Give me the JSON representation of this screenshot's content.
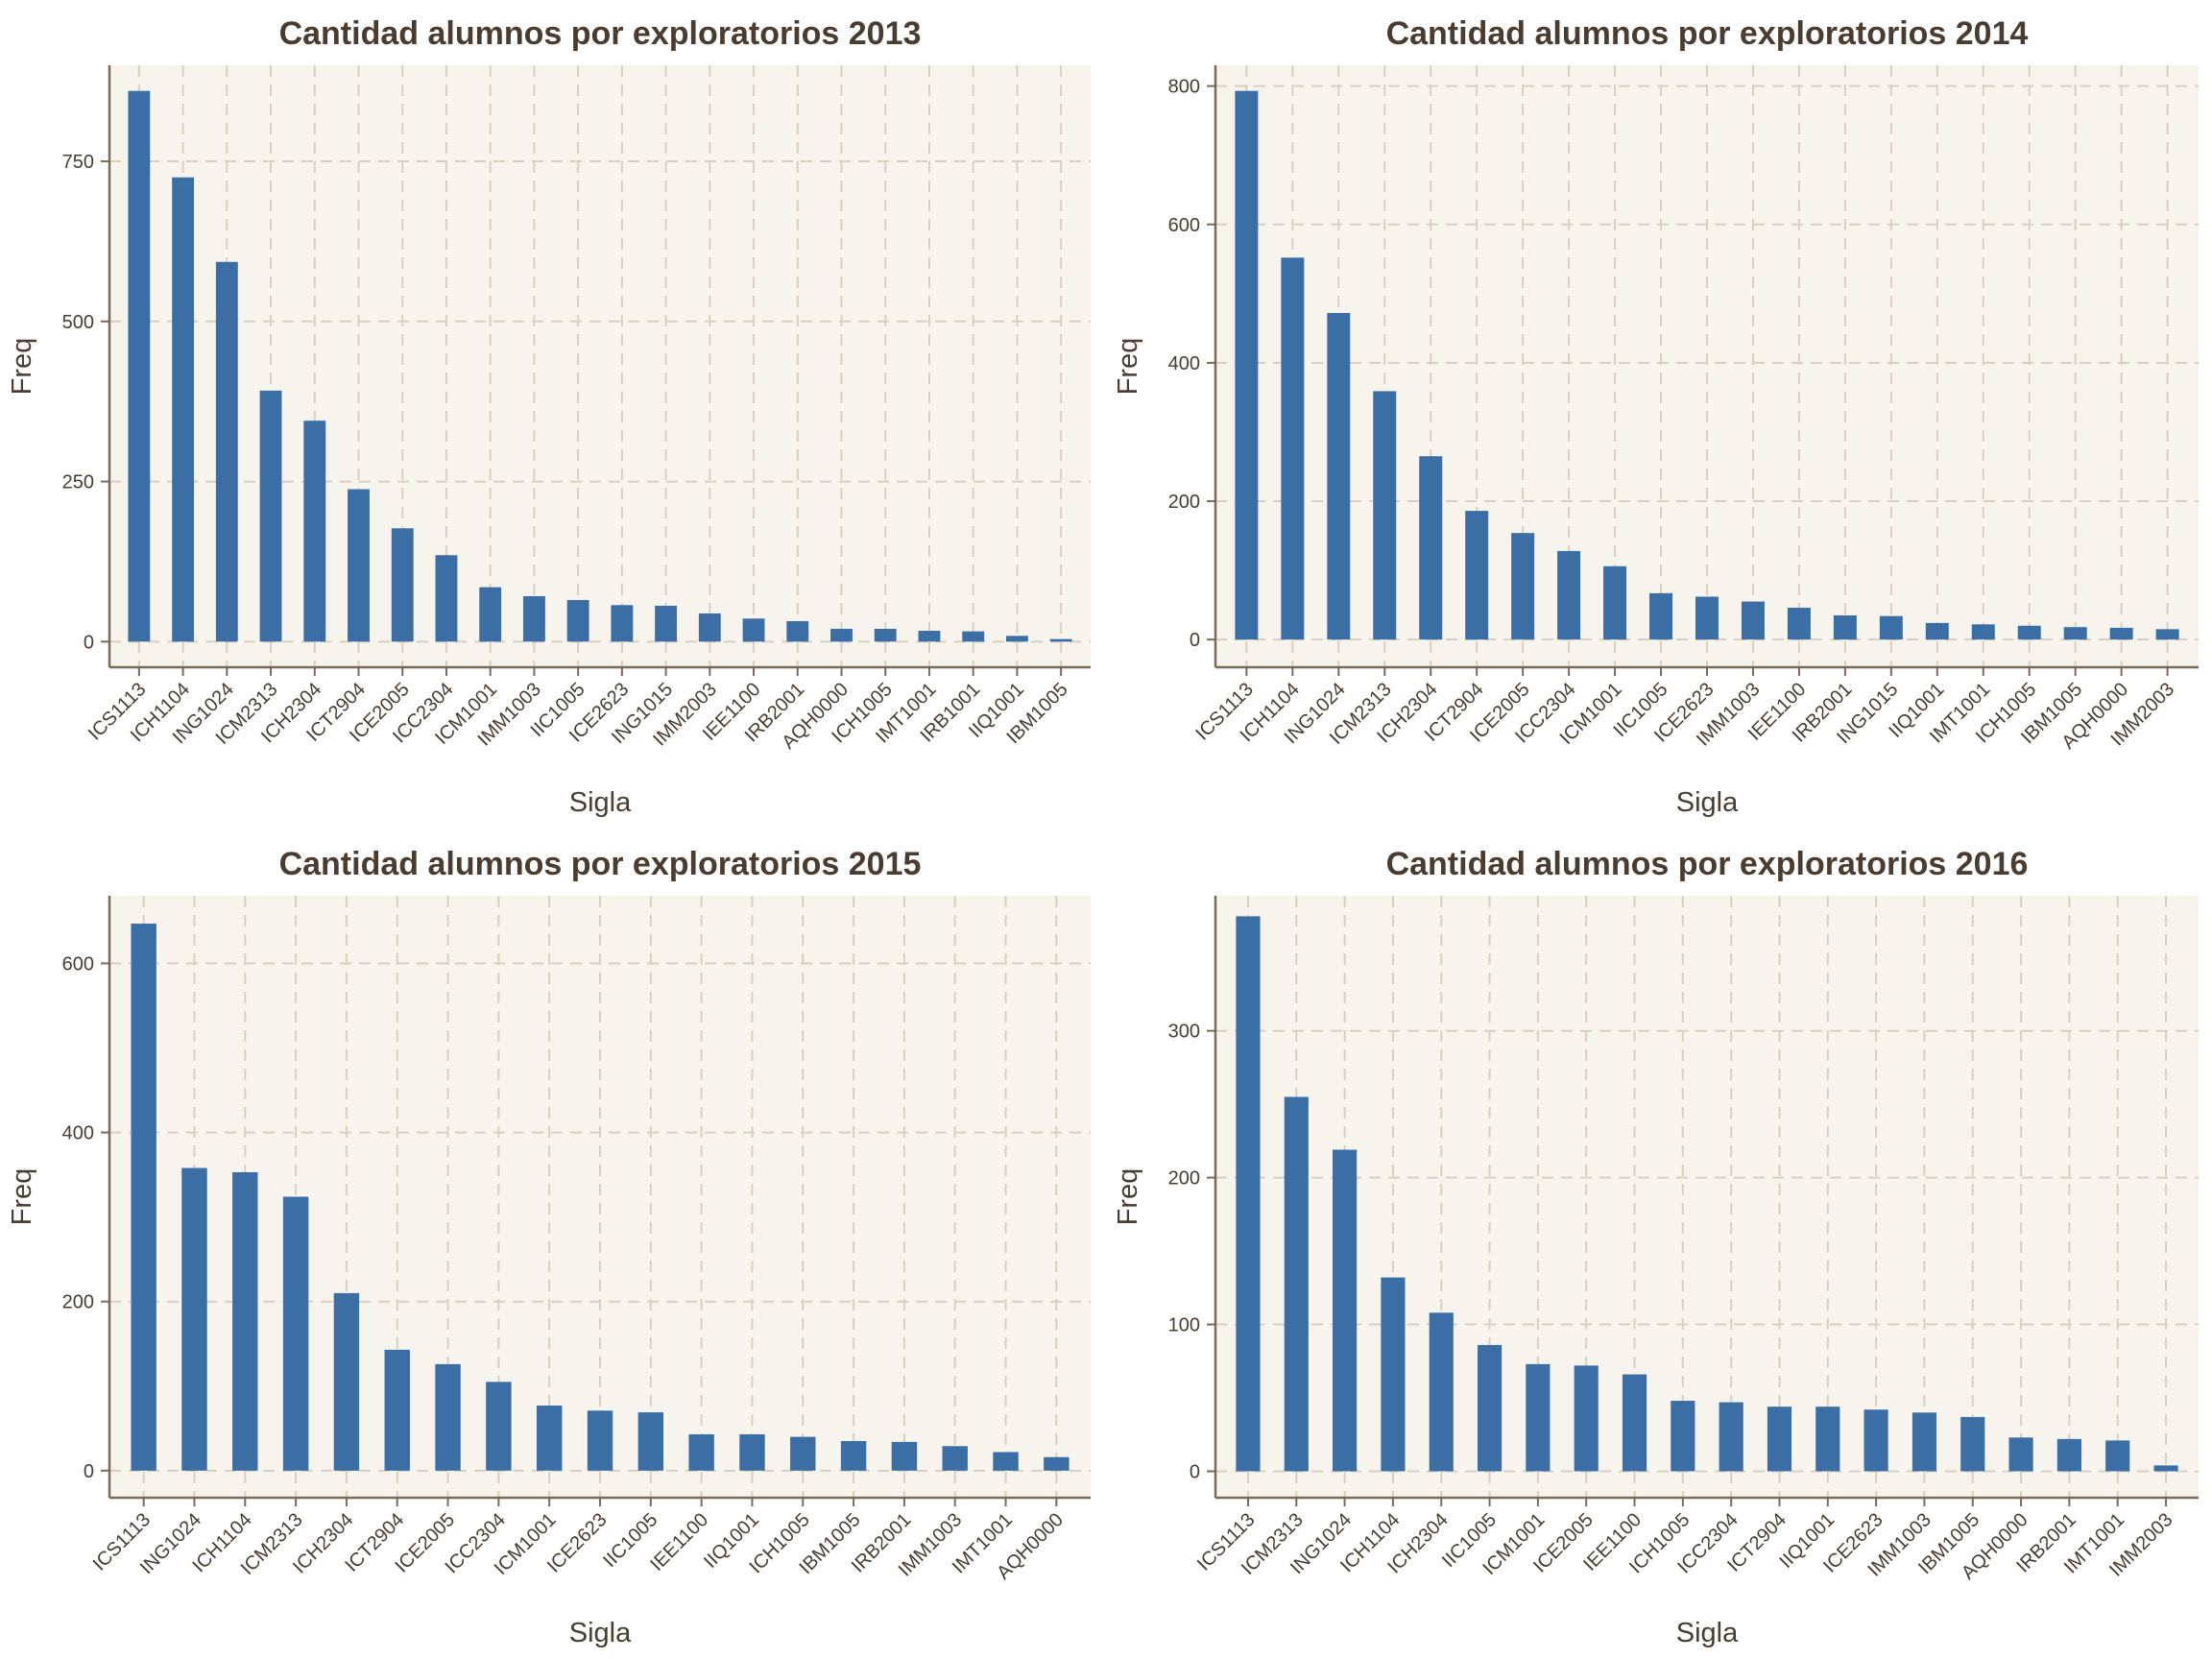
{
  "figure": {
    "background": "#ffffff",
    "panel_background": "#f7f4ee",
    "bar_color": "#3a6ea5"
  },
  "chart_data": [
    {
      "type": "bar",
      "title": "Cantidad alumnos por exploratorios 2013",
      "xlabel": "Sigla",
      "ylabel": "Freq",
      "ylim": [
        -40,
        900
      ],
      "yticks": [
        0,
        250,
        500,
        750
      ],
      "grid": true,
      "categories": [
        "ICS1113",
        "ICH1104",
        "ING1024",
        "ICM2313",
        "ICH2304",
        "ICT2904",
        "ICE2005",
        "ICC2304",
        "ICM1001",
        "IMM1003",
        "IIC1005",
        "ICE2623",
        "ING1015",
        "IMM2003",
        "IEE1100",
        "IRB2001",
        "AQH0000",
        "ICH1005",
        "IMT1001",
        "IRB1001",
        "IIQ1001",
        "IBM1005"
      ],
      "values": [
        860,
        725,
        593,
        392,
        345,
        238,
        177,
        135,
        85,
        71,
        65,
        57,
        56,
        44,
        36,
        32,
        20,
        20,
        17,
        16,
        9,
        4
      ]
    },
    {
      "type": "bar",
      "title": "Cantidad alumnos por exploratorios 2014",
      "xlabel": "Sigla",
      "ylabel": "Freq",
      "ylim": [
        -40,
        830
      ],
      "yticks": [
        0,
        200,
        400,
        600,
        800
      ],
      "grid": true,
      "categories": [
        "ICS1113",
        "ICH1104",
        "ING1024",
        "ICM2313",
        "ICH2304",
        "ICT2904",
        "ICE2005",
        "ICC2304",
        "ICM1001",
        "IIC1005",
        "ICE2623",
        "IMM1003",
        "IEE1100",
        "IRB2001",
        "ING1015",
        "IIQ1001",
        "IMT1001",
        "ICH1005",
        "IBM1005",
        "AQH0000",
        "IMM2003"
      ],
      "values": [
        793,
        552,
        472,
        359,
        265,
        186,
        154,
        128,
        106,
        67,
        62,
        55,
        46,
        35,
        34,
        24,
        22,
        20,
        18,
        17,
        15
      ]
    },
    {
      "type": "bar",
      "title": "Cantidad alumnos por exploratorios 2015",
      "xlabel": "Sigla",
      "ylabel": "Freq",
      "ylim": [
        -32,
        680
      ],
      "yticks": [
        0,
        200,
        400,
        600
      ],
      "grid": true,
      "categories": [
        "ICS1113",
        "ING1024",
        "ICH1104",
        "ICM2313",
        "ICH2304",
        "ICT2904",
        "ICE2005",
        "ICC2304",
        "ICM1001",
        "ICE2623",
        "IIC1005",
        "IEE1100",
        "IIQ1001",
        "ICH1005",
        "IBM1005",
        "IRB2001",
        "IMM1003",
        "IMT1001",
        "AQH0000"
      ],
      "values": [
        647,
        358,
        353,
        324,
        210,
        143,
        126,
        105,
        77,
        71,
        69,
        43,
        43,
        40,
        35,
        34,
        29,
        22,
        16
      ]
    },
    {
      "type": "bar",
      "title": "Cantidad alumnos por exploratorios 2016",
      "xlabel": "Sigla",
      "ylabel": "Freq",
      "ylim": [
        -18,
        392
      ],
      "yticks": [
        0,
        100,
        200,
        300
      ],
      "grid": true,
      "categories": [
        "ICS1113",
        "ICM2313",
        "ING1024",
        "ICH1104",
        "ICH2304",
        "IIC1005",
        "ICM1001",
        "ICE2005",
        "IEE1100",
        "ICH1005",
        "ICC2304",
        "ICT2904",
        "IIQ1001",
        "ICE2623",
        "IMM1003",
        "IBM1005",
        "AQH0000",
        "IRB2001",
        "IMT1001",
        "IMM2003"
      ],
      "values": [
        378,
        255,
        219,
        132,
        108,
        86,
        73,
        72,
        66,
        48,
        47,
        44,
        44,
        42,
        40,
        37,
        23,
        22,
        21,
        4
      ]
    }
  ]
}
